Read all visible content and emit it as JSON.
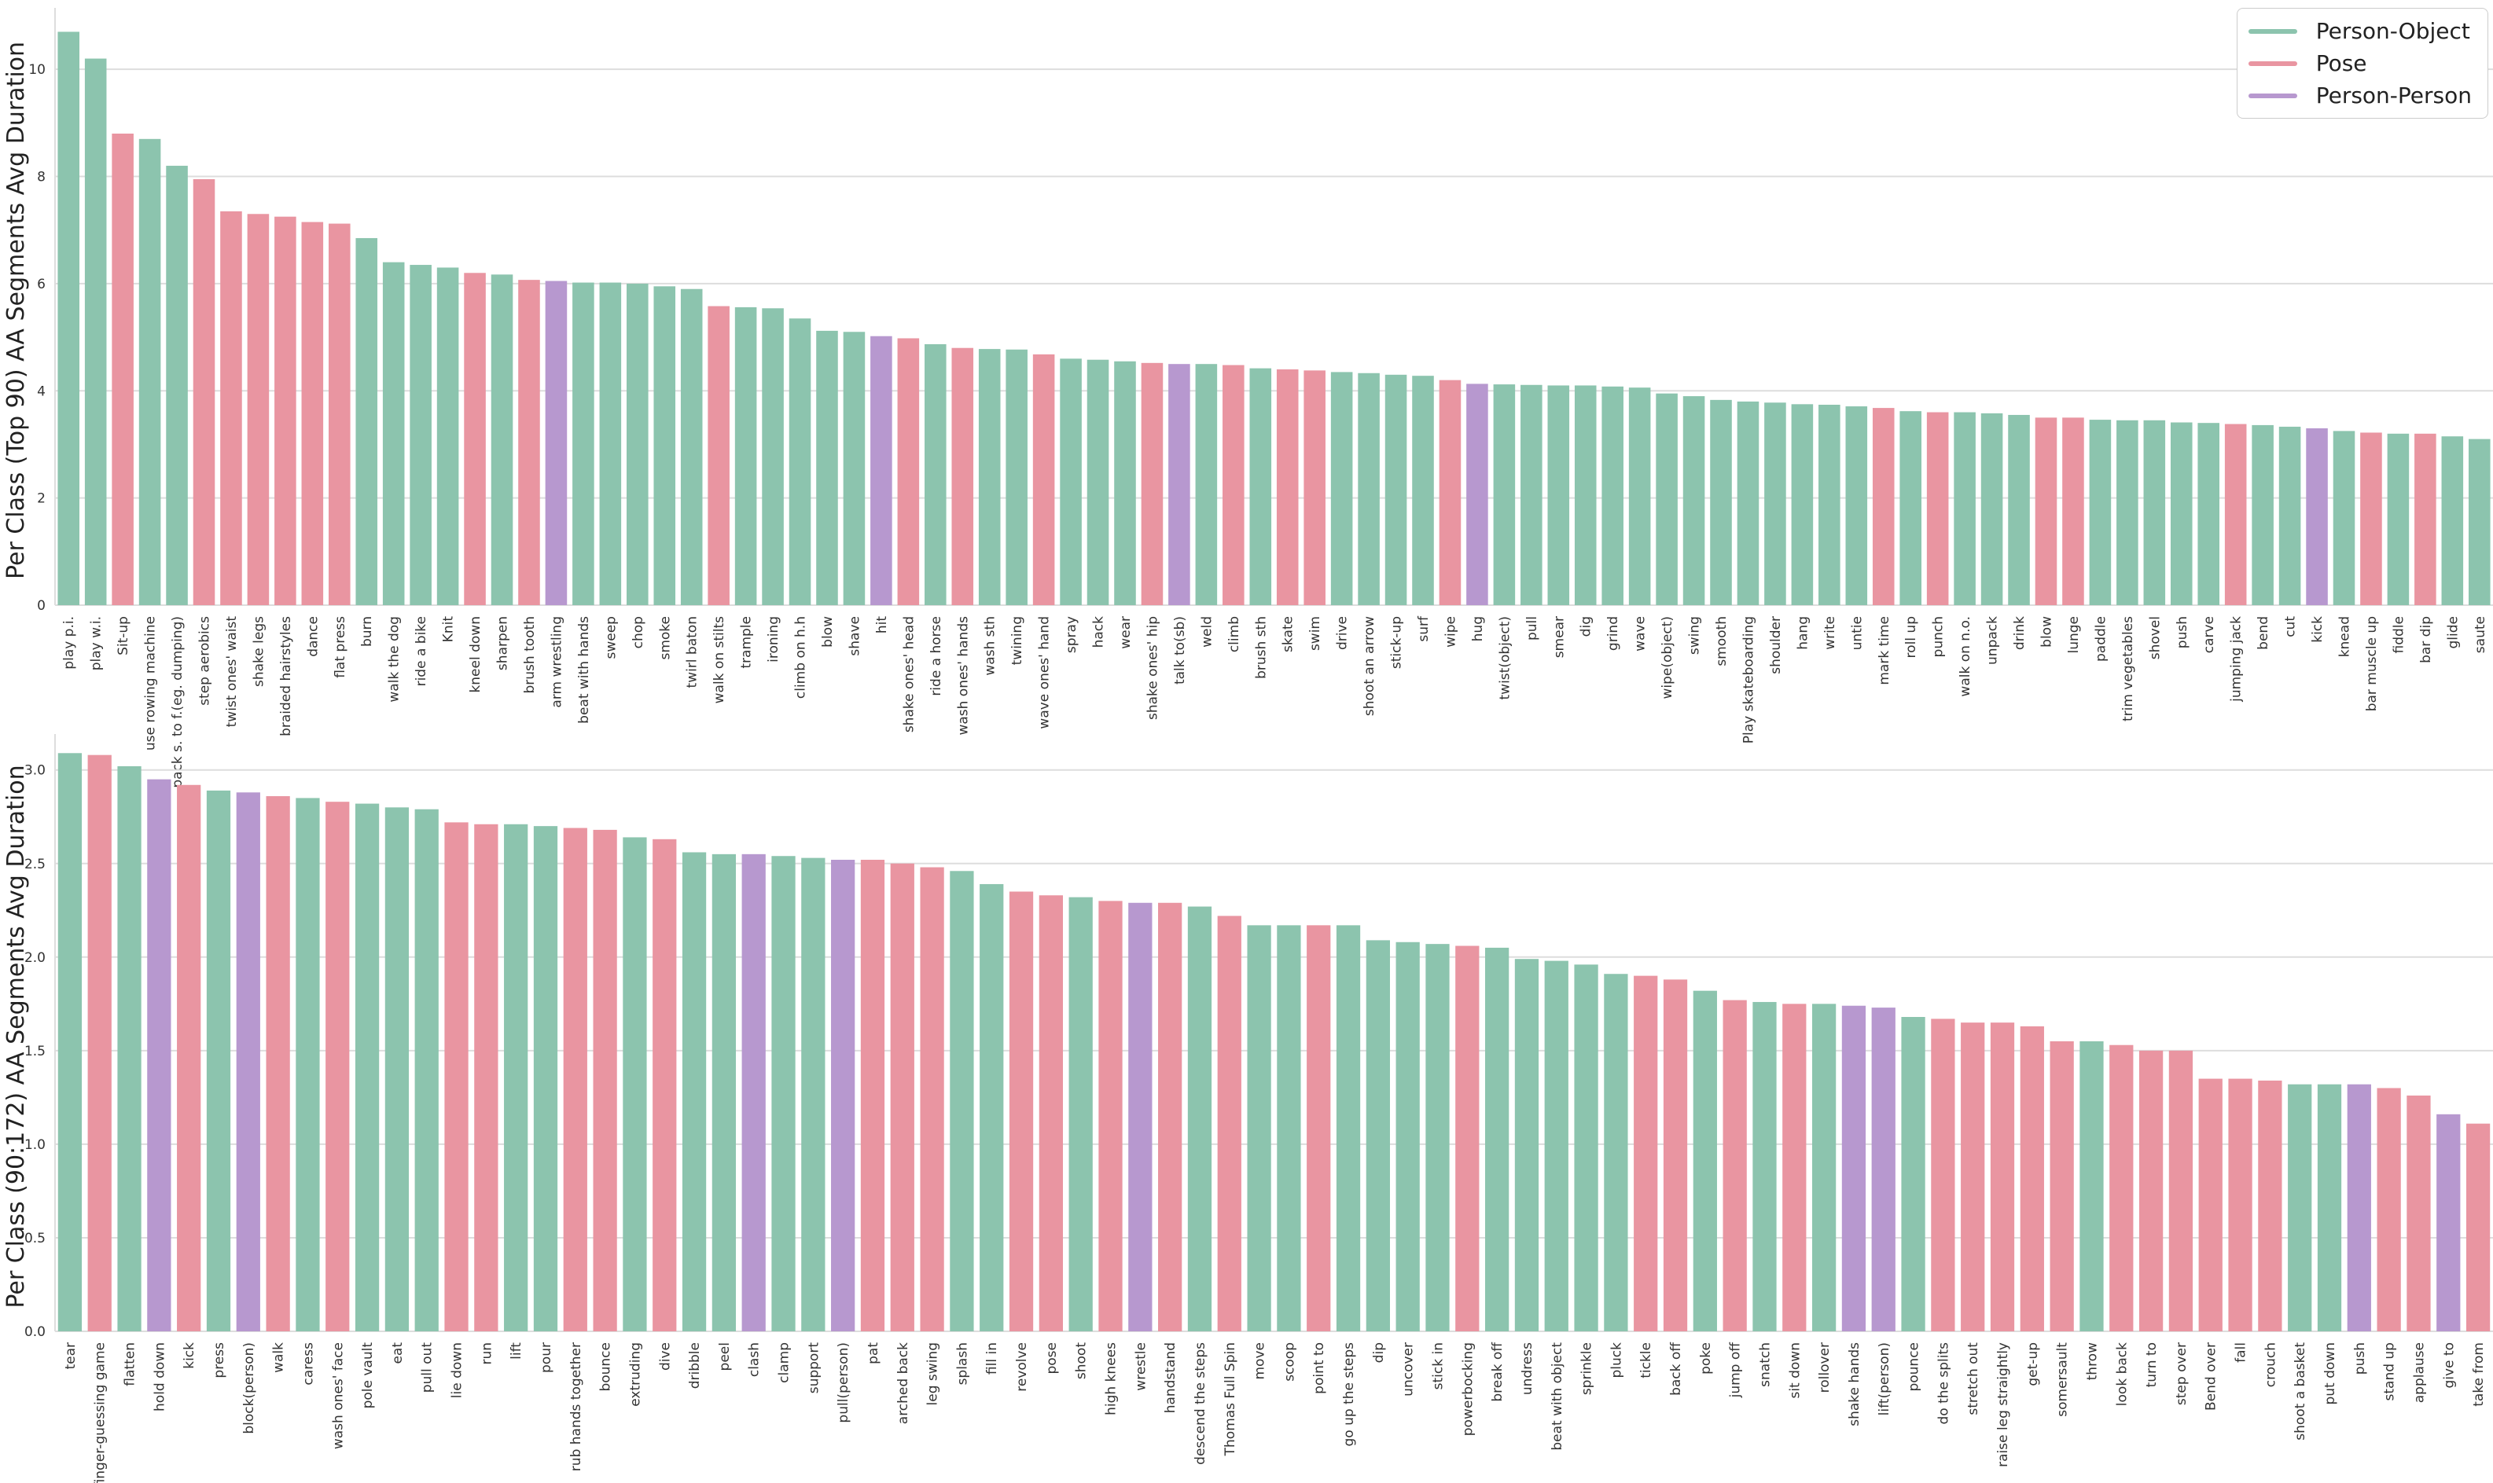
{
  "colors": {
    "Person-Object": "#8cc4ae",
    "Pose": "#e995a1",
    "Person-Person": "#b798cf"
  },
  "legend": [
    {
      "label": "Person-Object",
      "key": "Person-Object"
    },
    {
      "label": "Pose",
      "key": "Pose"
    },
    {
      "label": "Person-Person",
      "key": "Person-Person"
    }
  ],
  "chart_data": [
    {
      "type": "bar",
      "ylabel": "Per Class (Top 90) AA Segments Avg Duration",
      "ylim": [
        0,
        11
      ],
      "yticks": [
        0,
        2,
        4,
        6,
        8,
        10
      ],
      "tick_labels": [
        "0",
        "2",
        "4",
        "6",
        "8",
        "10"
      ],
      "categories": [
        "play p.i.",
        "play w.i.",
        "Sit-up",
        "use rowing machine",
        "pack s. to f.(eg. dumping)",
        "step aerobics",
        "twist ones' waist",
        "shake legs",
        "braided hairstyles",
        "dance",
        "flat press",
        "burn",
        "walk the dog",
        "ride a bike",
        "Knit",
        "kneel down",
        "sharpen",
        "brush tooth",
        "arm wrestling",
        "beat with hands",
        "sweep",
        "chop",
        "smoke",
        "twirl baton",
        "walk on stilts",
        "trample",
        "ironing",
        "climb on h.h",
        "blow",
        "shave",
        "hit",
        "shake ones' head",
        "ride a horse",
        "wash ones' hands",
        "wash sth",
        "twining",
        "wave ones' hand",
        "spray",
        "hack",
        "wear",
        "shake ones' hip",
        "talk to(sb)",
        "weld",
        "climb",
        "brush sth",
        "skate",
        "swim",
        "drive",
        "shoot an arrow",
        "stick-up",
        "surf",
        "wipe",
        "hug",
        "twist(object)",
        "pull",
        "smear",
        "dig",
        "grind",
        "wave",
        "wipe(object)",
        "swing",
        "smooth",
        "Play skateboarding",
        "shoulder",
        "hang",
        "write",
        "untie",
        "mark time",
        "roll up",
        "punch",
        "walk on n.o.",
        "unpack",
        "drink",
        "blow",
        "lunge",
        "paddle",
        "trim vegetables",
        "shovel",
        "push",
        "carve",
        "jumping jack",
        "bend",
        "cut",
        "kick",
        "knead",
        "bar muscle up",
        "fiddle",
        "bar dip",
        "glide",
        "saute"
      ],
      "values": [
        10.7,
        10.2,
        8.8,
        8.7,
        8.2,
        7.95,
        7.35,
        7.3,
        7.25,
        7.15,
        7.12,
        6.85,
        6.4,
        6.35,
        6.3,
        6.2,
        6.17,
        6.07,
        6.05,
        6.02,
        6.02,
        6.0,
        5.95,
        5.9,
        5.58,
        5.56,
        5.54,
        5.35,
        5.12,
        5.1,
        5.02,
        4.98,
        4.87,
        4.8,
        4.78,
        4.77,
        4.68,
        4.6,
        4.58,
        4.55,
        4.52,
        4.5,
        4.5,
        4.48,
        4.42,
        4.4,
        4.38,
        4.35,
        4.33,
        4.3,
        4.28,
        4.2,
        4.13,
        4.12,
        4.11,
        4.1,
        4.1,
        4.08,
        4.06,
        3.95,
        3.9,
        3.83,
        3.8,
        3.78,
        3.75,
        3.74,
        3.71,
        3.68,
        3.62,
        3.6,
        3.6,
        3.58,
        3.55,
        3.5,
        3.5,
        3.46,
        3.45,
        3.45,
        3.41,
        3.4,
        3.38,
        3.36,
        3.33,
        3.3,
        3.25,
        3.22,
        3.2,
        3.2,
        3.15,
        3.1
      ],
      "groups": [
        "Person-Object",
        "Person-Object",
        "Pose",
        "Person-Object",
        "Person-Object",
        "Pose",
        "Pose",
        "Pose",
        "Pose",
        "Pose",
        "Pose",
        "Person-Object",
        "Person-Object",
        "Person-Object",
        "Person-Object",
        "Pose",
        "Person-Object",
        "Pose",
        "Person-Person",
        "Person-Object",
        "Person-Object",
        "Person-Object",
        "Person-Object",
        "Person-Object",
        "Pose",
        "Person-Object",
        "Person-Object",
        "Person-Object",
        "Person-Object",
        "Person-Object",
        "Person-Person",
        "Pose",
        "Person-Object",
        "Pose",
        "Person-Object",
        "Person-Object",
        "Pose",
        "Person-Object",
        "Person-Object",
        "Person-Object",
        "Pose",
        "Person-Person",
        "Person-Object",
        "Pose",
        "Person-Object",
        "Pose",
        "Pose",
        "Person-Object",
        "Person-Object",
        "Person-Object",
        "Person-Object",
        "Pose",
        "Person-Person",
        "Person-Object",
        "Person-Object",
        "Person-Object",
        "Person-Object",
        "Person-Object",
        "Person-Object",
        "Person-Object",
        "Person-Object",
        "Person-Object",
        "Person-Object",
        "Person-Object",
        "Person-Object",
        "Person-Object",
        "Person-Object",
        "Pose",
        "Person-Object",
        "Pose",
        "Person-Object",
        "Person-Object",
        "Person-Object",
        "Pose",
        "Pose",
        "Person-Object",
        "Person-Object",
        "Person-Object",
        "Person-Object",
        "Person-Object",
        "Pose",
        "Person-Object",
        "Person-Object",
        "Person-Person",
        "Person-Object",
        "Pose",
        "Person-Object",
        "Pose",
        "Person-Object",
        "Person-Object"
      ]
    },
    {
      "type": "bar",
      "ylabel": "Per Class (90:172) AA Segments Avg Duration",
      "ylim": [
        0,
        3.15
      ],
      "yticks": [
        0,
        0.5,
        1.0,
        1.5,
        2.0,
        2.5,
        3.0
      ],
      "tick_labels": [
        "0.0",
        "0.5",
        "1.0",
        "1.5",
        "2.0",
        "2.5",
        "3.0"
      ],
      "categories": [
        "tear",
        "finger-guessing game",
        "flatten",
        "hold down",
        "kick",
        "press",
        "block(person)",
        "walk",
        "caress",
        "wash ones' face",
        "pole vault",
        "eat",
        "pull out",
        "lie down",
        "run",
        "lift",
        "pour",
        "rub hands together",
        "bounce",
        "extruding",
        "dive",
        "dribble",
        "peel",
        "clash",
        "clamp",
        "support",
        "pull(person)",
        "pat",
        "arched back",
        "leg swing",
        "splash",
        "fill in",
        "revolve",
        "pose",
        "shoot",
        "high knees",
        "wrestle",
        "handstand",
        "descend the steps",
        "Thomas Full Spin",
        "move",
        "scoop",
        "point to",
        "go up the steps",
        "dip",
        "uncover",
        "stick in",
        "powerbocking",
        "break off",
        "undress",
        "beat with object",
        "sprinkle",
        "pluck",
        "tickle",
        "back off",
        "poke",
        "jump off",
        "snatch",
        "sit down",
        "rollover",
        "shake hands",
        "lift(person)",
        "pounce",
        "do the splits",
        "stretch out",
        "raise leg straightly",
        "get-up",
        "somersault",
        "throw",
        "look back",
        "turn to",
        "step over",
        "Bend over",
        "fall",
        "crouch",
        "shoot a basket",
        "put down",
        "push",
        "stand up",
        "applause",
        "give to",
        "take from"
      ],
      "values": [
        3.09,
        3.08,
        3.02,
        2.95,
        2.92,
        2.89,
        2.88,
        2.86,
        2.85,
        2.83,
        2.82,
        2.8,
        2.79,
        2.72,
        2.71,
        2.71,
        2.7,
        2.69,
        2.68,
        2.64,
        2.63,
        2.56,
        2.55,
        2.55,
        2.54,
        2.53,
        2.52,
        2.52,
        2.5,
        2.48,
        2.46,
        2.39,
        2.35,
        2.33,
        2.32,
        2.3,
        2.29,
        2.29,
        2.27,
        2.22,
        2.17,
        2.17,
        2.17,
        2.17,
        2.09,
        2.08,
        2.07,
        2.06,
        2.05,
        1.99,
        1.98,
        1.96,
        1.91,
        1.9,
        1.88,
        1.82,
        1.77,
        1.76,
        1.75,
        1.75,
        1.74,
        1.73,
        1.68,
        1.67,
        1.65,
        1.65,
        1.63,
        1.55,
        1.55,
        1.53,
        1.5,
        1.5,
        1.35,
        1.35,
        1.34,
        1.32,
        1.32,
        1.32,
        1.3,
        1.26,
        1.16,
        1.11
      ],
      "groups": [
        "Person-Object",
        "Pose",
        "Person-Object",
        "Person-Person",
        "Pose",
        "Person-Object",
        "Person-Person",
        "Pose",
        "Person-Object",
        "Pose",
        "Person-Object",
        "Person-Object",
        "Person-Object",
        "Pose",
        "Pose",
        "Person-Object",
        "Person-Object",
        "Pose",
        "Pose",
        "Person-Object",
        "Pose",
        "Person-Object",
        "Person-Object",
        "Person-Person",
        "Person-Object",
        "Person-Object",
        "Person-Person",
        "Pose",
        "Pose",
        "Pose",
        "Person-Object",
        "Person-Object",
        "Pose",
        "Pose",
        "Person-Object",
        "Pose",
        "Person-Person",
        "Pose",
        "Person-Object",
        "Pose",
        "Person-Object",
        "Person-Object",
        "Pose",
        "Person-Object",
        "Person-Object",
        "Person-Object",
        "Person-Object",
        "Pose",
        "Person-Object",
        "Person-Object",
        "Person-Object",
        "Person-Object",
        "Person-Object",
        "Pose",
        "Pose",
        "Person-Object",
        "Pose",
        "Person-Object",
        "Pose",
        "Person-Object",
        "Person-Person",
        "Person-Person",
        "Person-Object",
        "Pose",
        "Pose",
        "Pose",
        "Pose",
        "Pose",
        "Person-Object",
        "Pose",
        "Pose",
        "Pose",
        "Pose",
        "Pose",
        "Pose",
        "Person-Object",
        "Person-Object",
        "Person-Person",
        "Pose",
        "Pose",
        "Person-Person",
        "Pose"
      ]
    }
  ]
}
